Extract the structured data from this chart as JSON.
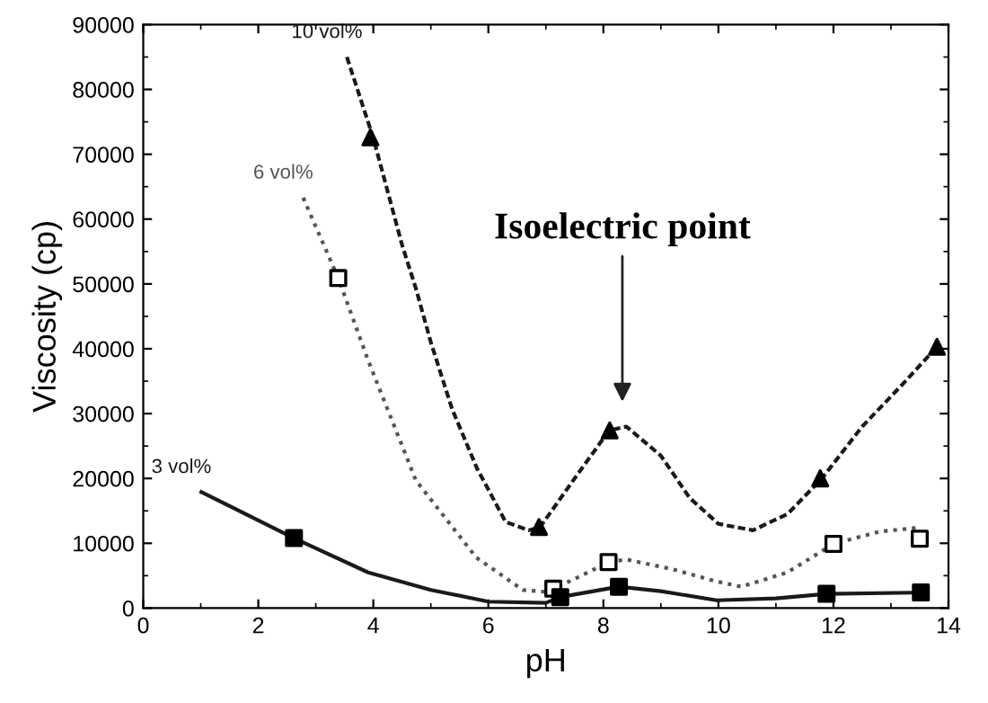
{
  "chart_data": {
    "type": "line",
    "xlabel": "pH",
    "ylabel": "Viscosity (cp)",
    "xlim": [
      0,
      14
    ],
    "xticks": [
      0,
      2,
      4,
      6,
      8,
      10,
      12,
      14
    ],
    "ylim": [
      0,
      90000
    ],
    "yticks": [
      0,
      10000,
      20000,
      30000,
      40000,
      50000,
      60000,
      70000,
      80000,
      90000
    ],
    "grid": false,
    "legend": false,
    "annotations": [
      "Isoelectric point"
    ],
    "series": [
      {
        "name": "10 vol%",
        "color": "#1a1a1a",
        "line_style": "dashed",
        "marker": "none",
        "x": [
          3.54,
          4.0,
          4.5,
          4.74,
          5.0,
          5.37,
          5.8,
          6.3,
          6.7,
          6.9,
          7.5,
          8.1,
          8.4,
          9.0,
          9.5,
          10.0,
          10.6,
          11.2,
          11.8,
          12.5,
          13.2,
          13.8
        ],
        "values": [
          85000,
          72500,
          56000,
          49300,
          41000,
          30700,
          21600,
          13300,
          12000,
          12500,
          20000,
          27400,
          28000,
          23500,
          17000,
          13000,
          12000,
          14500,
          20000,
          28000,
          34500,
          40300
        ]
      },
      {
        "name": "6 vol%",
        "color": "#555555",
        "line_style": "dotted",
        "marker": "none",
        "x": [
          2.78,
          3.39,
          3.91,
          4.74,
          5.79,
          6.6,
          7.0,
          7.5,
          8.09,
          8.4,
          9.2,
          9.97,
          10.4,
          11.2,
          12.0,
          12.8,
          13.47
        ],
        "values": [
          63300,
          50900,
          38200,
          19700,
          7800,
          2800,
          2500,
          4500,
          7100,
          7500,
          6000,
          4100,
          3300,
          5500,
          9900,
          11800,
          12400
        ]
      },
      {
        "name": "3 vol%",
        "color": "#1a1a1a",
        "line_style": "solid",
        "marker": "none",
        "x": [
          1.01,
          2.62,
          3.91,
          5.0,
          6.0,
          7.0,
          7.25,
          8.27,
          9.0,
          9.97,
          11.0,
          11.88,
          13.52
        ],
        "values": [
          17900,
          10800,
          5500,
          2800,
          1000,
          800,
          1700,
          3300,
          2600,
          1200,
          1500,
          2200,
          2400
        ]
      },
      {
        "type": "scatter",
        "color": "#000000",
        "marker": "triangle",
        "x": [
          3.95,
          6.88,
          8.11,
          11.77,
          13.8
        ],
        "values": [
          72600,
          12500,
          27400,
          20000,
          40300
        ]
      },
      {
        "type": "scatter",
        "color": "#ffffff",
        "marker": "square",
        "x": [
          3.39,
          7.13,
          8.09,
          12.0,
          13.5
        ],
        "values": [
          50900,
          3000,
          7100,
          9900,
          10700
        ]
      },
      {
        "type": "scatter",
        "color": "#000000",
        "marker": "square",
        "x": [
          2.62,
          7.25,
          8.27,
          11.88,
          13.52
        ],
        "values": [
          10800,
          1700,
          3300,
          2200,
          2400
        ]
      }
    ]
  }
}
